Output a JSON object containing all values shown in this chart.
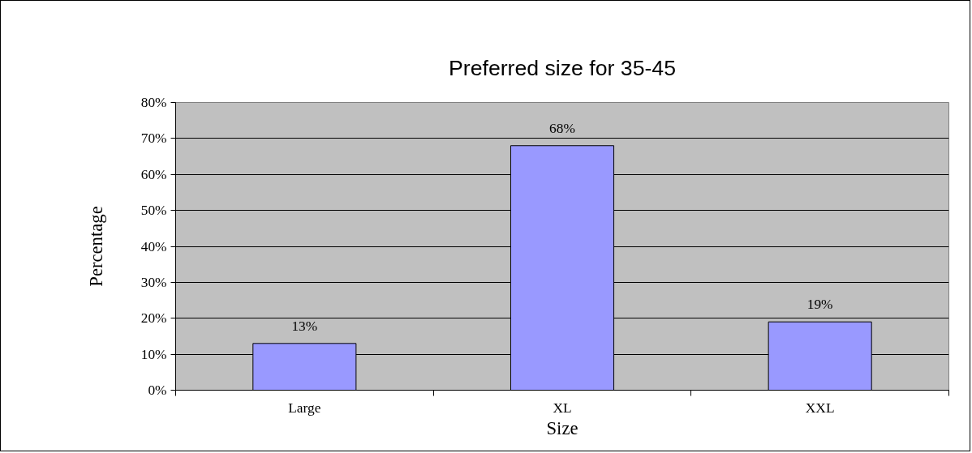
{
  "chart_data": {
    "type": "bar",
    "title": "Preferred size for 35-45",
    "xlabel": "Size",
    "ylabel": "Percentage",
    "categories": [
      "Large",
      "XL",
      "XXL"
    ],
    "values": [
      13,
      68,
      19
    ],
    "color": "#9999ff",
    "value_labels": [
      "13%",
      "68%",
      "19%"
    ],
    "ylim": [
      0,
      80
    ],
    "yticks": [
      {
        "value": 0,
        "label": "0%"
      },
      {
        "value": 10,
        "label": "10%"
      },
      {
        "value": 20,
        "label": "20%"
      },
      {
        "value": 30,
        "label": "30%"
      },
      {
        "value": 40,
        "label": "40%"
      },
      {
        "value": 50,
        "label": "50%"
      },
      {
        "value": 60,
        "label": "60%"
      },
      {
        "value": 70,
        "label": "70%"
      },
      {
        "value": 80,
        "label": "80%"
      }
    ],
    "grid": "y"
  }
}
